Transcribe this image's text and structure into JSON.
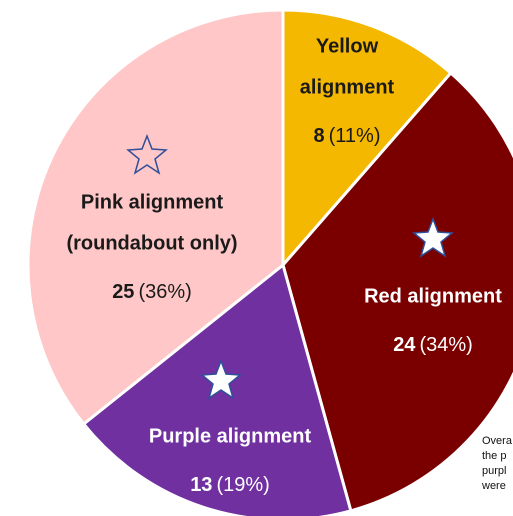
{
  "chart_data": {
    "type": "pie",
    "categories": [
      [
        "Yellow",
        "alignment"
      ],
      [
        "Red alignment"
      ],
      [
        "Purple alignment"
      ],
      [
        "Pink alignment",
        "(roundabout only)"
      ]
    ],
    "values": [
      8,
      24,
      13,
      25
    ],
    "percent_labels": [
      "(11%)",
      "(34%)",
      "(19%)",
      "(36%)"
    ],
    "colors": [
      "#f5b800",
      "#7a0000",
      "#7030a0",
      "#ffc7c7"
    ],
    "annotation": [
      "Overa",
      "the p",
      "purpl",
      "were"
    ]
  }
}
